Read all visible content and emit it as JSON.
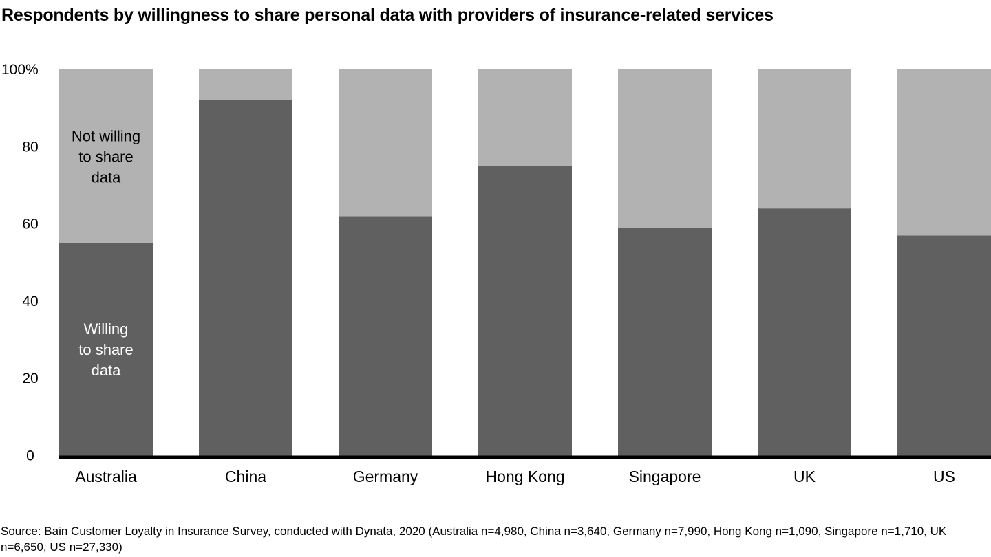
{
  "chart_data": {
    "type": "bar",
    "stacked": true,
    "title": "Respondents by willingness to share personal data with providers of insurance-related services",
    "xlabel": "",
    "ylabel": "",
    "ylim": [
      0,
      100
    ],
    "yticks": [
      0,
      20,
      40,
      60,
      80,
      100
    ],
    "ytick_labels": [
      "0",
      "20",
      "40",
      "60",
      "80",
      "100%"
    ],
    "grid": false,
    "categories": [
      "Australia",
      "China",
      "Germany",
      "Hong Kong",
      "Singapore",
      "UK",
      "US"
    ],
    "series": [
      {
        "name": "Willing to share data",
        "label_lines": [
          "Willing",
          "to share",
          "data"
        ],
        "color": "#606060",
        "label_color": "#ffffff",
        "values": [
          55,
          92,
          62,
          75,
          59,
          64,
          57
        ]
      },
      {
        "name": "Not willing to share data",
        "label_lines": [
          "Not willing",
          "to share",
          "data"
        ],
        "color": "#b2b2b2",
        "label_color": "#000000",
        "values": [
          45,
          8,
          38,
          25,
          41,
          36,
          43
        ]
      }
    ],
    "baseline_color": "#000000",
    "source": "Source: Bain Customer Loyalty in Insurance Survey, conducted with Dynata, 2020 (Australia n=4,980, China n=3,640, Germany n=7,990, Hong Kong n=1,090, Singapore n=1,710, UK n=6,650, US n=27,330)"
  }
}
